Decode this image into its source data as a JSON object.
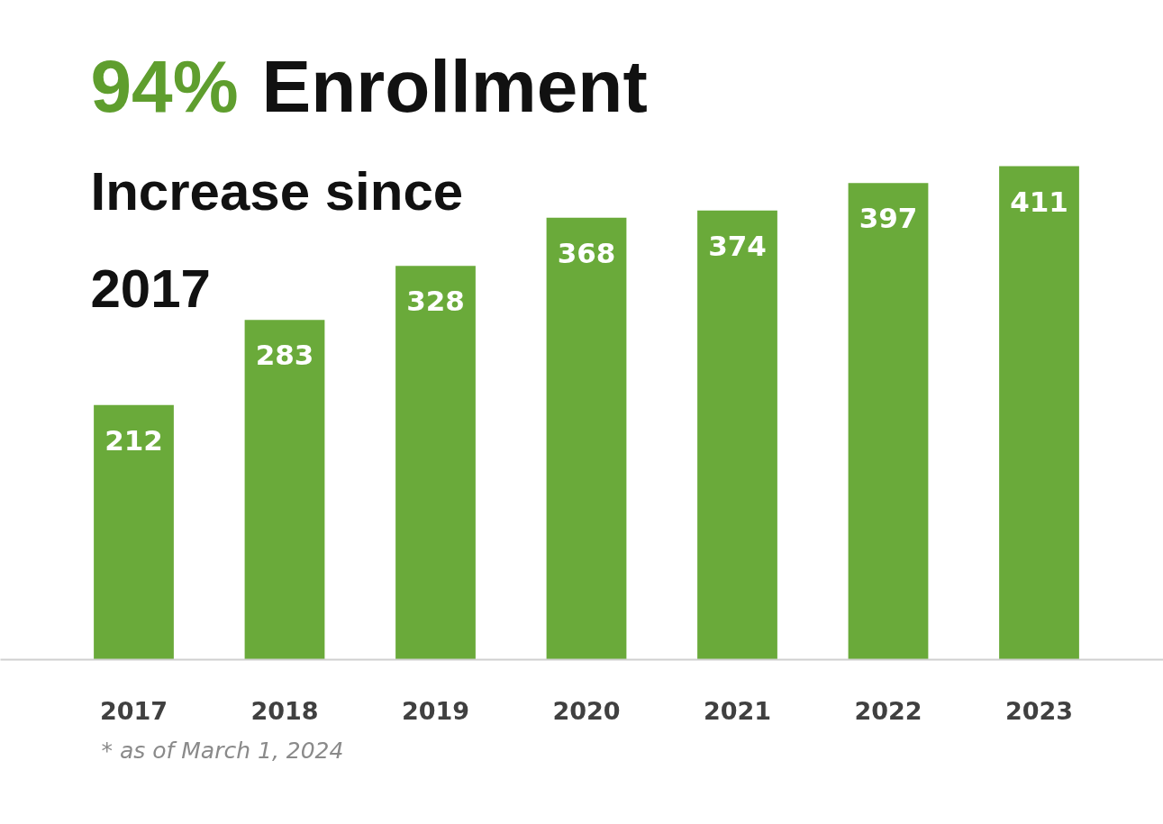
{
  "chart_data": {
    "type": "bar",
    "title": "94% Enrollment",
    "subtitle": "Increase since 2017",
    "categories": [
      "2017",
      "2018",
      "2019",
      "2020",
      "2021",
      "2022",
      "2023"
    ],
    "values": [
      212,
      283,
      328,
      368,
      374,
      397,
      411
    ],
    "color": "#6aaa3a",
    "data_labels": true,
    "tick_labels": "x",
    "annotations": [
      "* as of March 1, 2024"
    ]
  }
}
